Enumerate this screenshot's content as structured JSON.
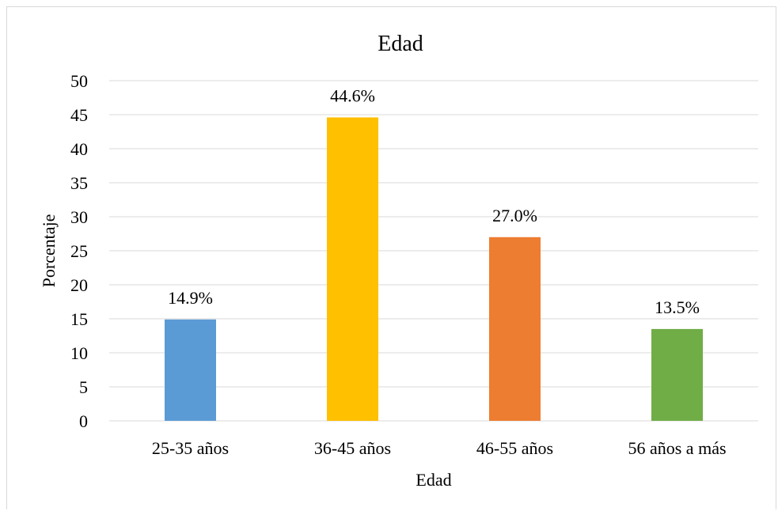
{
  "chart_data": {
    "type": "bar",
    "title": "Edad",
    "xlabel": "Edad",
    "ylabel": "Porcentaje",
    "categories": [
      "25-35 años",
      "36-45 años",
      "46-55 años",
      "56 años a más"
    ],
    "values": [
      14.9,
      44.6,
      27.0,
      13.5
    ],
    "data_labels": [
      "14.9%",
      "44.6%",
      "27.0%",
      "13.5%"
    ],
    "colors": [
      "#5b9bd5",
      "#ffc000",
      "#ed7d31",
      "#70ad47"
    ],
    "ylim": [
      0,
      50
    ],
    "yticks": [
      0,
      5,
      10,
      15,
      20,
      25,
      30,
      35,
      40,
      45,
      50
    ],
    "grid": true,
    "legend": "none"
  }
}
